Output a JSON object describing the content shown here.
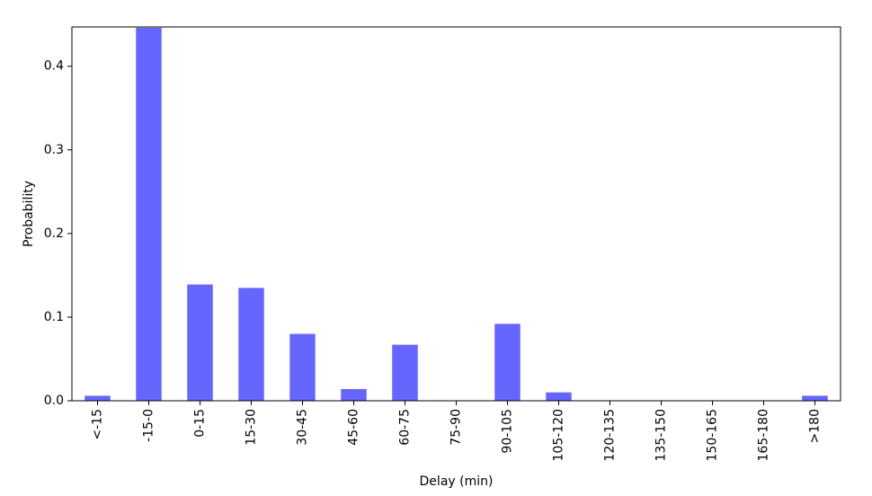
{
  "chart_data": {
    "type": "bar",
    "title": "",
    "xlabel": "Delay (min)",
    "ylabel": "Probability",
    "categories": [
      "<-15",
      "-15-0",
      "0-15",
      "15-30",
      "30-45",
      "45-60",
      "60-75",
      "75-90",
      "90-105",
      "105-120",
      "120-135",
      "135-150",
      "150-165",
      "165-180",
      ">180"
    ],
    "values": [
      0.006,
      0.446,
      0.139,
      0.135,
      0.08,
      0.014,
      0.067,
      0.0,
      0.092,
      0.01,
      0.0,
      0.0,
      0.0,
      0.0,
      0.006
    ],
    "ylim": [
      0,
      0.447
    ],
    "yticks": [
      0.0,
      0.1,
      0.2,
      0.3,
      0.4
    ],
    "ytick_labels": [
      "0.0",
      "0.1",
      "0.2",
      "0.3",
      "0.4"
    ],
    "bar_color": "#6666ff",
    "grid": false,
    "legend": "none"
  }
}
